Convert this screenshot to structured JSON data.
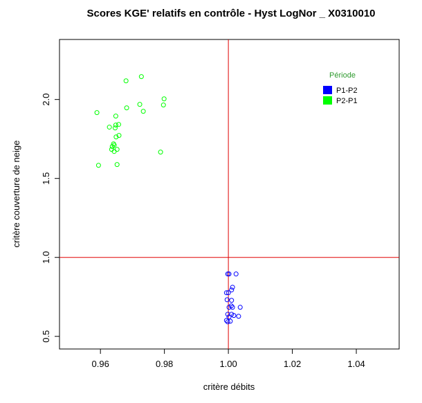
{
  "chart_data": {
    "type": "scatter",
    "title": "Scores KGE' relatifs en contrôle -  Hyst LogNor _ X0310010",
    "x_label": "critère débits",
    "y_label": "critère couverture de neige",
    "xlim": [
      0.9472,
      1.0534
    ],
    "ylim": [
      0.42,
      2.38
    ],
    "xticks": [
      0.96,
      0.98,
      {
        "value": 1,
        "label": "1.00"
      },
      1.02,
      1.04
    ],
    "yticks": [
      0.5,
      {
        "value": 1,
        "label": "1.0"
      },
      1.5,
      {
        "value": 2,
        "label": "2.0"
      }
    ],
    "reference_lines": {
      "x": 1,
      "y": 1,
      "color": "#e00000"
    },
    "legend_title": "Période",
    "legend_title_color": "#2e9a2e",
    "legend_position": "topright",
    "series": [
      {
        "name": "P1-P2",
        "color": "#0000ff",
        "x": [
          0.9998,
          1.0002,
          1.0024,
          1.0013,
          1.001,
          1.0,
          0.9994,
          0.9996,
          1.001,
          1.0013,
          1.0002,
          1.0037,
          0.9998,
          1.001,
          1.0017,
          1.0032,
          1.0002,
          0.9994,
          1.0006,
          0.9998,
          1.0009
        ],
        "values": [
          0.895,
          0.895,
          0.895,
          0.811,
          0.794,
          0.776,
          0.776,
          0.732,
          0.728,
          0.684,
          0.684,
          0.684,
          0.64,
          0.64,
          0.632,
          0.627,
          0.623,
          0.601,
          0.596,
          0.592,
          0.693
        ]
      },
      {
        "name": "P2-P1",
        "color": "#00ff00",
        "x": [
          0.968,
          0.9728,
          0.9589,
          0.9682,
          0.9723,
          0.9734,
          0.9799,
          0.9797,
          0.9648,
          0.9648,
          0.9657,
          0.9628,
          0.9646,
          0.9658,
          0.9649,
          0.9641,
          0.9643,
          0.9652,
          0.9637,
          0.9635,
          0.9643,
          0.9788,
          0.9594,
          0.9652
        ],
        "values": [
          2.118,
          2.145,
          1.917,
          1.947,
          1.969,
          1.925,
          2.004,
          1.965,
          1.895,
          1.838,
          1.842,
          1.825,
          1.82,
          1.772,
          1.763,
          1.719,
          1.711,
          1.684,
          1.702,
          1.684,
          1.671,
          1.667,
          1.583,
          1.588
        ]
      }
    ]
  }
}
